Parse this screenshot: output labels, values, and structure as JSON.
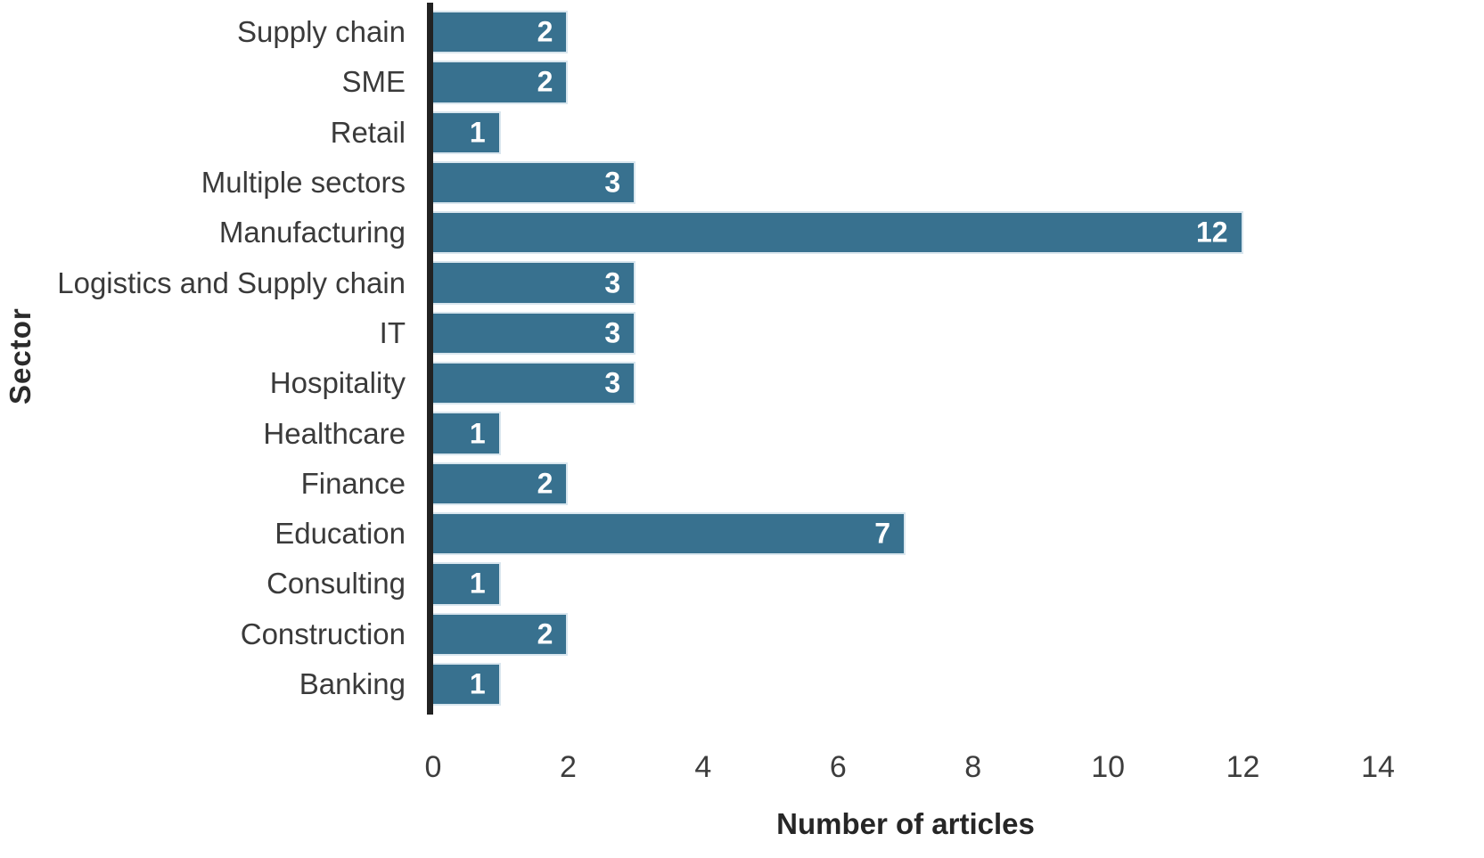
{
  "chart_data": {
    "type": "bar",
    "orientation": "horizontal",
    "categories": [
      "Supply chain",
      "SME",
      "Retail",
      "Multiple sectors",
      "Manufacturing",
      "Logistics and Supply chain",
      "IT",
      "Hospitality",
      "Healthcare",
      "Finance",
      "Education",
      "Consulting",
      "Construction",
      "Banking"
    ],
    "values": [
      2,
      2,
      1,
      3,
      12,
      3,
      3,
      3,
      1,
      2,
      7,
      1,
      2,
      1
    ],
    "title": "",
    "xlabel": "Number of articles",
    "ylabel": "Sector",
    "xlim": [
      0,
      14
    ],
    "xticks": [
      0,
      2,
      4,
      6,
      8,
      10,
      12,
      14
    ],
    "grid": false,
    "legend_position": "none",
    "bar_color": "#38718F",
    "bar_edge_color": "#d9e6ee",
    "value_label_color": "#ffffff",
    "axis_line_color": "#222222",
    "text_color": "#3a3a3a"
  }
}
